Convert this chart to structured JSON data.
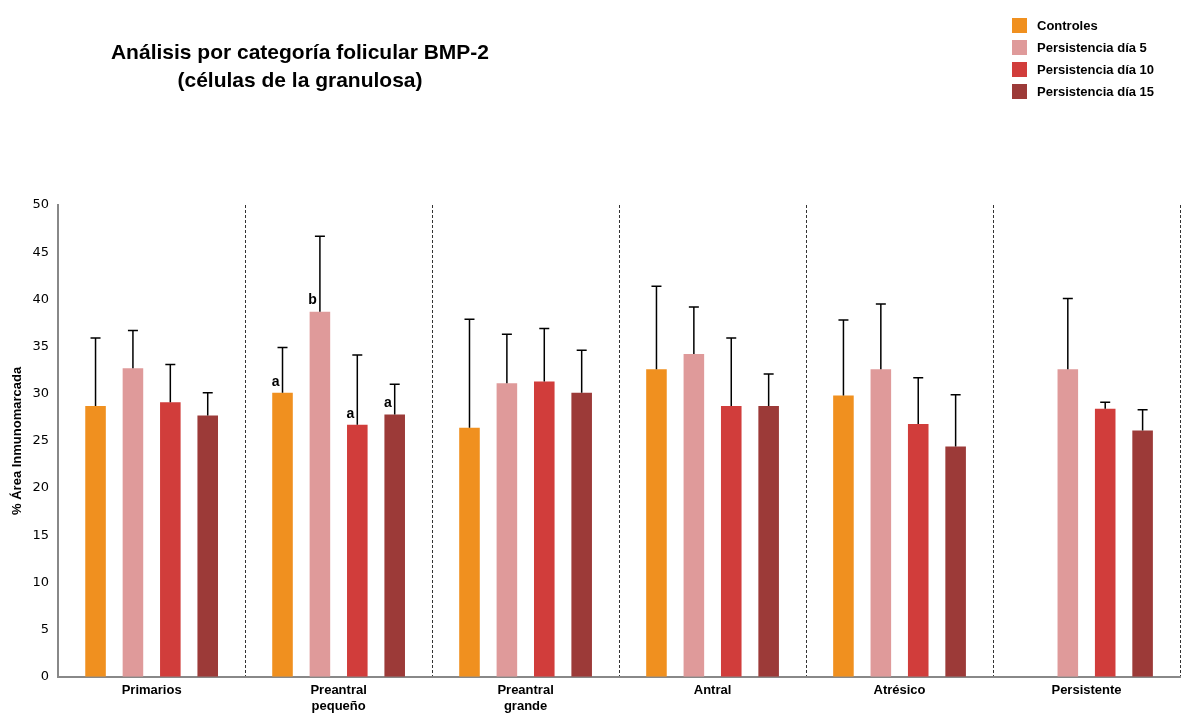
{
  "chart_data": {
    "type": "bar",
    "title": "Análisis por categoría folicular BMP-2 (células de la granulosa)",
    "ylabel": "% Área Inmunomarcada",
    "categories": [
      "Primarios",
      "Preantral pequeño",
      "Preantral grande",
      "Antral",
      "Atrésico",
      "Persistente"
    ],
    "series": [
      {
        "name": "Controles",
        "color": "#f0901f",
        "values": [
          28.7,
          30.1,
          26.4,
          32.6,
          29.8,
          null
        ],
        "errors": [
          [
            28.7,
            35.9
          ],
          [
            30.1,
            34.9
          ],
          [
            26.4,
            37.9
          ],
          [
            32.6,
            41.4
          ],
          [
            29.8,
            37.8
          ],
          null
        ],
        "value_labels": [
          null,
          "a",
          null,
          null,
          null,
          null
        ]
      },
      {
        "name": "Persistencia día 5",
        "color": "#df9a9a",
        "values": [
          32.7,
          38.7,
          31.1,
          34.2,
          32.6,
          32.6
        ],
        "errors": [
          [
            32.7,
            36.7
          ],
          [
            38.7,
            46.7
          ],
          [
            31.1,
            36.3
          ],
          [
            34.2,
            39.2
          ],
          [
            32.6,
            39.5
          ],
          [
            32.6,
            40.1
          ]
        ],
        "value_labels": [
          null,
          "b",
          null,
          null,
          null,
          null
        ]
      },
      {
        "name": "Persistencia día 10",
        "color": "#d13d3b",
        "values": [
          29.1,
          26.7,
          31.3,
          28.7,
          26.8,
          28.4
        ],
        "errors": [
          [
            29.1,
            33.1
          ],
          [
            26.7,
            34.1
          ],
          [
            31.3,
            36.9
          ],
          [
            28.7,
            35.9
          ],
          [
            26.8,
            31.7
          ],
          [
            28.4,
            29.1
          ]
        ],
        "value_labels": [
          null,
          "a",
          null,
          null,
          null,
          null
        ]
      },
      {
        "name": "Persistencia día 15",
        "color": "#9c3a38",
        "values": [
          27.7,
          27.8,
          30.1,
          28.7,
          24.4,
          26.1
        ],
        "errors": [
          [
            27.7,
            30.1
          ],
          [
            27.8,
            31.0
          ],
          [
            30.1,
            34.6
          ],
          [
            28.7,
            32.1
          ],
          [
            24.4,
            29.9
          ],
          [
            26.1,
            28.3
          ]
        ],
        "value_labels": [
          null,
          "a",
          null,
          null,
          null,
          null
        ]
      }
    ],
    "ylim": [
      0,
      50
    ],
    "yticks": [
      0,
      5,
      10,
      15,
      20,
      25,
      30,
      35,
      40,
      45,
      50
    ],
    "grid": "x",
    "legend": "top right"
  }
}
